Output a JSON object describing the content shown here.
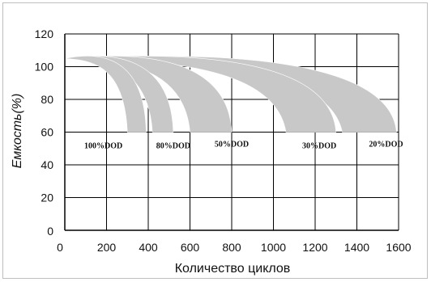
{
  "chart_data": {
    "type": "area",
    "xlabel": "Количество циклов",
    "ylabel": "Емкость(%)",
    "xlim": [
      0,
      1600
    ],
    "ylim": [
      0,
      120
    ],
    "x_ticks": [
      "0",
      "200",
      "400",
      "600",
      "800",
      "1000",
      "1200",
      "1400",
      "1600"
    ],
    "y_ticks": [
      "0",
      "20",
      "40",
      "60",
      "80",
      "100",
      "120"
    ],
    "grid": true,
    "band_color": "#c8c8c8",
    "series": [
      {
        "name": "100%DOD",
        "start": [
          0,
          105
        ],
        "end_upper": [
          390,
          60
        ],
        "end_lower": [
          300,
          60
        ],
        "label_at": [
          185,
          56
        ]
      },
      {
        "name": "80%DOD",
        "start": [
          0,
          105
        ],
        "end_upper": [
          520,
          60
        ],
        "end_lower": [
          420,
          60
        ],
        "label_at": [
          520,
          56
        ]
      },
      {
        "name": "50%DOD",
        "start": [
          0,
          105
        ],
        "end_upper": [
          800,
          60
        ],
        "end_lower": [
          600,
          60
        ],
        "label_at": [
          800,
          57
        ]
      },
      {
        "name": "30%DOD",
        "start": [
          0,
          105
        ],
        "end_upper": [
          1300,
          60
        ],
        "end_lower": [
          1060,
          60
        ],
        "label_at": [
          1220,
          56
        ]
      },
      {
        "name": "20%DOD",
        "start": [
          0,
          105
        ],
        "end_upper": [
          1590,
          60
        ],
        "end_lower": [
          1330,
          60
        ],
        "label_at": [
          1540,
          57
        ]
      }
    ]
  }
}
